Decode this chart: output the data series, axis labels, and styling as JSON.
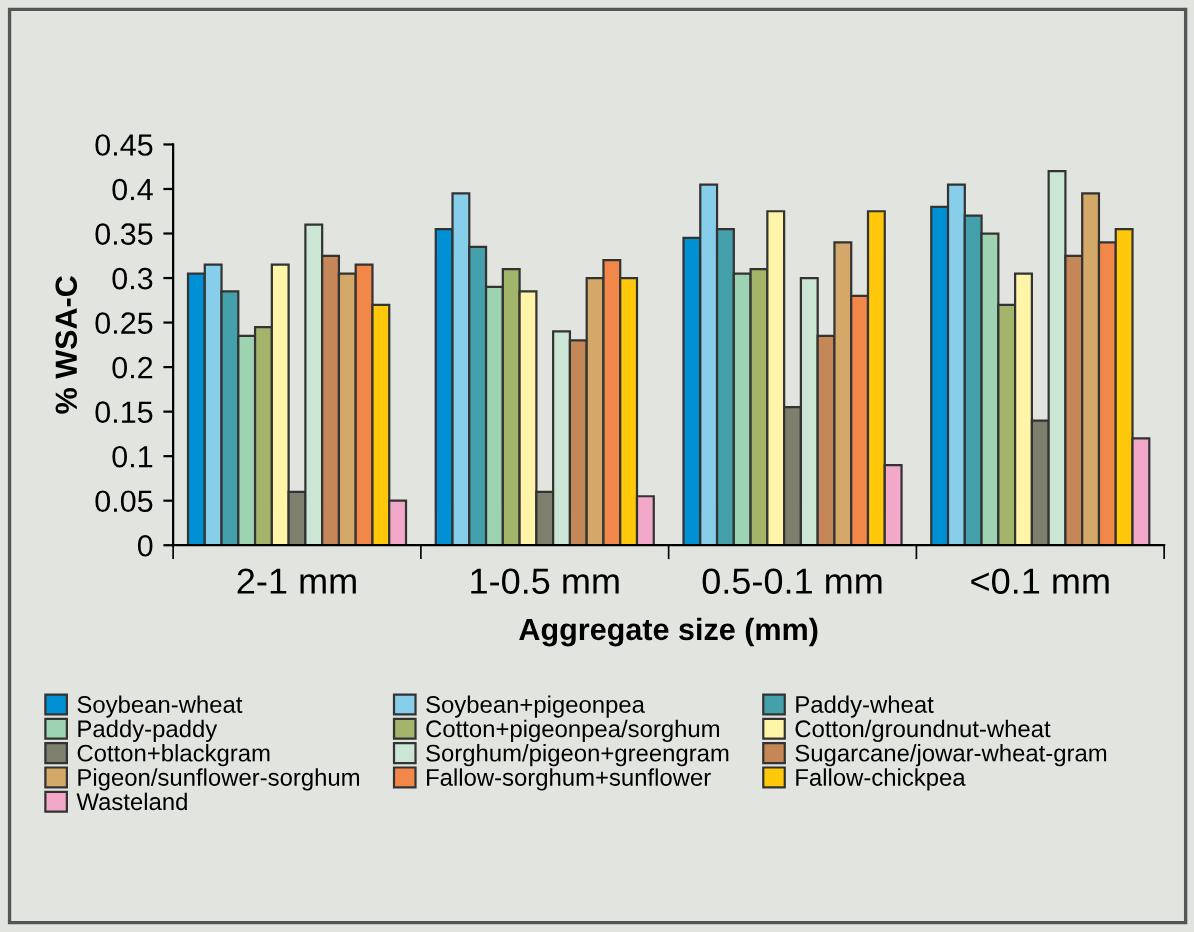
{
  "chart_data": {
    "type": "bar",
    "xlabel": "Aggregate size (mm)",
    "ylabel": "% WSA-C",
    "categories": [
      "2-1 mm",
      "1-0.5 mm",
      "0.5-0.1 mm",
      "<0.1 mm"
    ],
    "ylim": [
      0,
      0.45
    ],
    "yticks": [
      0,
      0.05,
      0.1,
      0.15,
      0.2,
      0.25,
      0.3,
      0.35,
      0.4,
      0.45
    ],
    "grid": false,
    "legend": "bottom",
    "series": [
      {
        "name": "Soybean-wheat",
        "color": "#0090d4",
        "values": [
          0.305,
          0.355,
          0.345,
          0.38
        ]
      },
      {
        "name": "Soybean+pigeonpea",
        "color": "#87ceeb",
        "values": [
          0.315,
          0.395,
          0.405,
          0.405
        ]
      },
      {
        "name": "Paddy-wheat",
        "color": "#44a0aa",
        "values": [
          0.285,
          0.335,
          0.355,
          0.37
        ]
      },
      {
        "name": "Paddy-paddy",
        "color": "#9dd3b0",
        "values": [
          0.235,
          0.29,
          0.305,
          0.35
        ]
      },
      {
        "name": "Cotton+pigeonpea/sorghum",
        "color": "#a2b56a",
        "values": [
          0.245,
          0.31,
          0.31,
          0.27
        ]
      },
      {
        "name": "Cotton/groundnut-wheat",
        "color": "#fff4a8",
        "values": [
          0.315,
          0.285,
          0.375,
          0.305
        ]
      },
      {
        "name": "Cotton+blackgram",
        "color": "#7f7f6e",
        "values": [
          0.06,
          0.06,
          0.155,
          0.14
        ]
      },
      {
        "name": "Sorghum/pigeon+greengram",
        "color": "#cbe6d4",
        "values": [
          0.36,
          0.24,
          0.3,
          0.42
        ]
      },
      {
        "name": "Sugarcane/jowar-wheat-gram",
        "color": "#c58757",
        "values": [
          0.325,
          0.23,
          0.235,
          0.325
        ]
      },
      {
        "name": "Pigeon/sunflower-sorghum",
        "color": "#d4a868",
        "values": [
          0.305,
          0.3,
          0.34,
          0.395
        ]
      },
      {
        "name": "Fallow-sorghum+sunflower",
        "color": "#f2874a",
        "values": [
          0.315,
          0.32,
          0.28,
          0.34
        ]
      },
      {
        "name": "Fallow-chickpea",
        "color": "#ffc80a",
        "values": [
          0.27,
          0.3,
          0.375,
          0.355
        ]
      },
      {
        "name": "Wasteland",
        "color": "#f2a8c8",
        "values": [
          0.05,
          0.055,
          0.09,
          0.12
        ]
      }
    ]
  }
}
